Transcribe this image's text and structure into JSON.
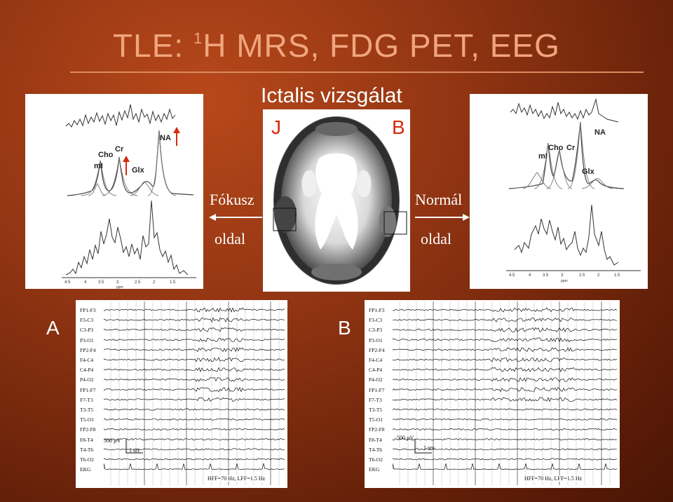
{
  "slide": {
    "title_main": "TLE: ",
    "title_sup": "1",
    "title_rest": "H MRS, FDG PET, EEG",
    "subtitle": "Ictalis vizsgálat"
  },
  "mrs_left": {
    "peaks": [
      "Cho",
      "Cr",
      "mI",
      "Glx",
      "NA"
    ],
    "ppm_ticks": [
      "4.5",
      "4",
      "3.5",
      "3",
      "2.5",
      "2",
      "1.5"
    ],
    "ppm_label": "ppm"
  },
  "mrs_right": {
    "peaks": [
      "mI",
      "Cho",
      "Cr",
      "NA",
      "Glx"
    ],
    "ppm_ticks": [
      "4.5",
      "4",
      "3.5",
      "3",
      "2.5",
      "2",
      "1.5"
    ],
    "ppm_label": "ppm"
  },
  "pet": {
    "left_letter": "J",
    "right_letter": "B",
    "left_letter_color": "#d62a10",
    "right_letter_color": "#d62a10"
  },
  "side_labels": {
    "left_top": "Fókusz",
    "left_bottom": "oldal",
    "right_top": "Normál",
    "right_bottom": "oldal"
  },
  "eeg": {
    "panel_a_letter": "A",
    "panel_b_letter": "B",
    "channels": [
      "FP1-F3",
      "F3-C3",
      "C3-P3",
      "P3-O1",
      "FP2-F4",
      "F4-C4",
      "C4-P4",
      "P4-O2",
      "FP1-F7",
      "F7-T3",
      "T3-T5",
      "T5-O1",
      "FP2-F8",
      "F8-T4",
      "T4-T6",
      "T6-O2",
      "EKG"
    ],
    "amp_scale": "500 µV",
    "time_scale": "1 sec",
    "filter_a": "HFF=70 Hz, LFF=1.5 Hz",
    "filter_b": "HFF=70 Hz, LFF=1.5 Hz"
  },
  "colors": {
    "arrow_red": "#d62a10",
    "title": "#f0a57d"
  }
}
